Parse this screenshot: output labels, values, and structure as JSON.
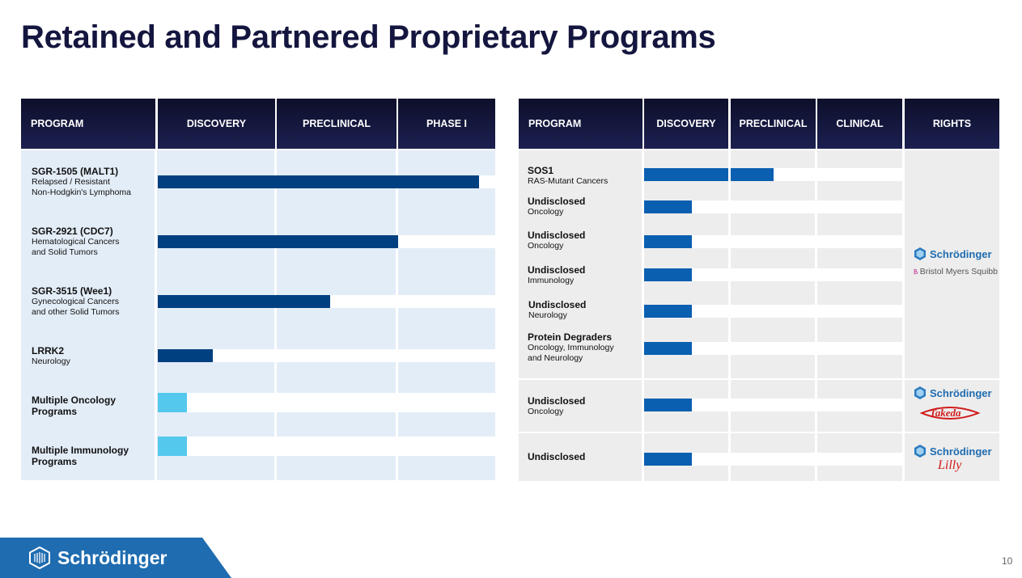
{
  "title": "Retained and Partnered Proprietary Programs",
  "colors": {
    "dark_bar": "#004080",
    "light_bar": "#55c8ee",
    "sos_bar": "#0a5fb0",
    "header": "#14173f",
    "left_body": "#e3edf7",
    "right_body": "#ededed"
  },
  "left_table": {
    "headers": [
      "PROGRAM",
      "DISCOVERY",
      "PRECLINICAL",
      "PHASE I"
    ],
    "rows": [
      {
        "name": "SGR-1505 (MALT1)",
        "sub": [
          "Relapsed / Resistant",
          "Non-Hodgkin's Lymphoma"
        ],
        "progress_stage": 2.83,
        "color": "dark"
      },
      {
        "name": "SGR-2921 (CDC7)",
        "sub": [
          "Hematological Cancers",
          "and Solid Tumors"
        ],
        "progress_stage": 2.0,
        "color": "dark"
      },
      {
        "name": "SGR-3515 (Wee1)",
        "sub": [
          "Gynecological Cancers",
          "and other Solid Tumors"
        ],
        "progress_stage": 1.45,
        "color": "dark"
      },
      {
        "name": "LRRK2",
        "sub": [
          "Neurology"
        ],
        "progress_stage": 0.47,
        "color": "dark"
      },
      {
        "name": "Multiple Oncology",
        "name2": "Programs",
        "sub": [],
        "progress_stage": 0.25,
        "color": "light"
      },
      {
        "name": "Multiple Immunology",
        "name2": "Programs",
        "sub": [],
        "progress_stage": 0.25,
        "color": "light"
      }
    ]
  },
  "right_table": {
    "headers": [
      "PROGRAM",
      "DISCOVERY",
      "PRECLINICAL",
      "CLINICAL",
      "RIGHTS"
    ],
    "rows": [
      {
        "name": "SOS1",
        "sub": [
          "RAS-Mutant Cancers"
        ],
        "progress_stage": 1.52
      },
      {
        "name": "Undisclosed",
        "sub": [
          "Oncology"
        ],
        "progress_stage": 0.57
      },
      {
        "name": "Undisclosed",
        "sub": [
          "Oncology"
        ],
        "progress_stage": 0.57
      },
      {
        "name": "Undisclosed",
        "sub": [
          "Immunology"
        ],
        "progress_stage": 0.57
      },
      {
        "name": "Undisclosed",
        "sub": [
          "Neurology"
        ],
        "progress_stage": 0.57
      },
      {
        "name": "Protein Degraders",
        "sub": [
          "Oncology, Immunology",
          "and Neurology"
        ],
        "progress_stage": 0.57
      },
      {
        "name": "Undisclosed",
        "sub": [
          "Oncology"
        ],
        "progress_stage": 0.57
      },
      {
        "name": "Undisclosed",
        "sub": [],
        "progress_stage": 0.57
      }
    ],
    "rights": [
      {
        "company": "Schrödinger",
        "partner": "Bristol Myers Squibb"
      },
      {
        "company": "Schrödinger",
        "partner": "Takeda"
      },
      {
        "company": "Schrödinger",
        "partner": "Lilly"
      }
    ]
  },
  "footer": {
    "brand": "Schrödinger",
    "page_number": "10"
  }
}
